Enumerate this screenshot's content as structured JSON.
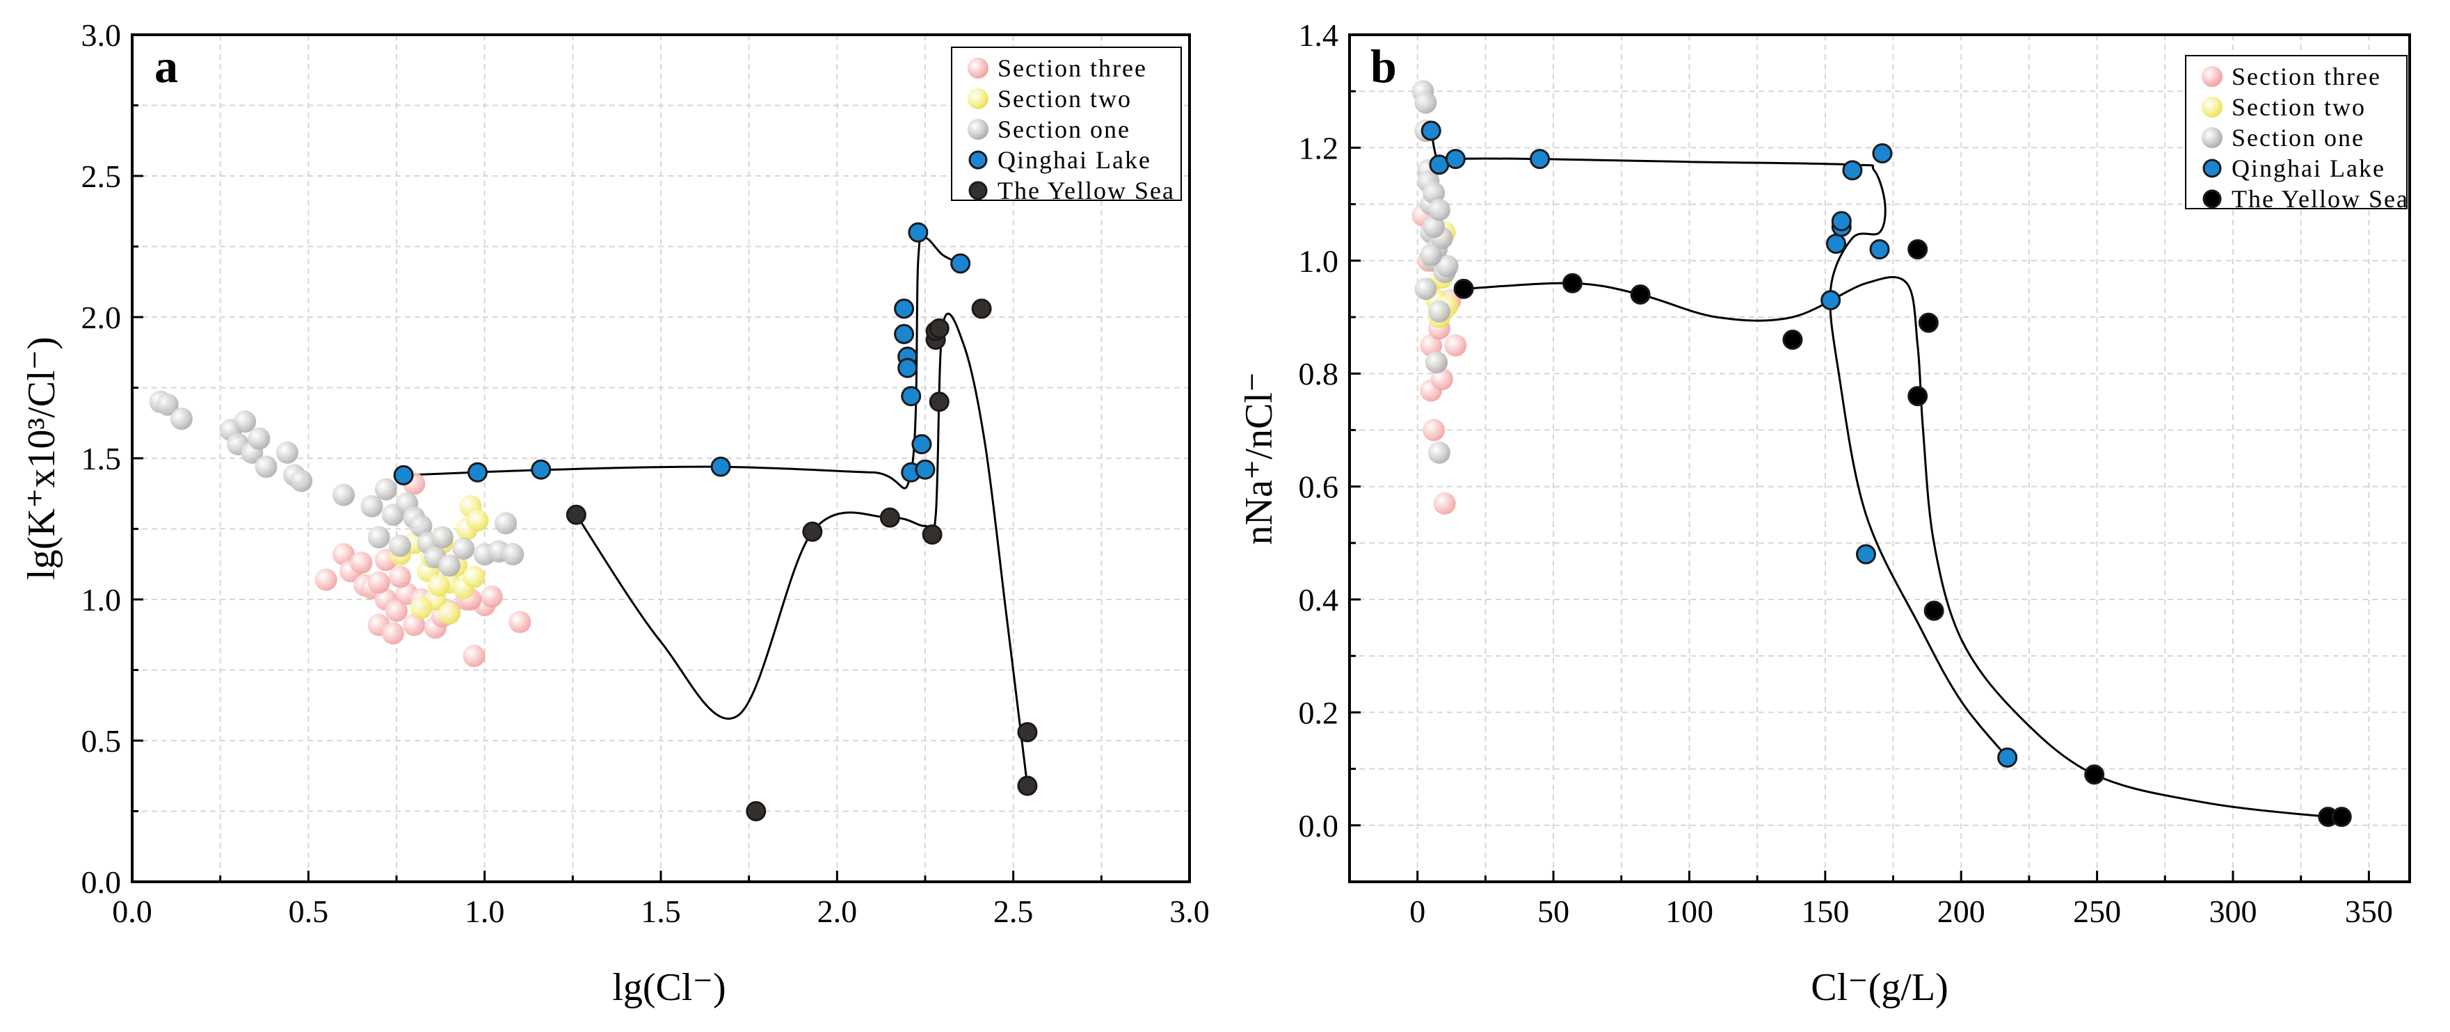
{
  "chart_data": [
    {
      "panel": "a",
      "type": "scatter",
      "xlabel": "lg(Cl⁻)",
      "ylabel": "lg(K⁺x10³/Cl⁻)",
      "xlim": [
        0,
        3
      ],
      "ylim": [
        0,
        3
      ],
      "xticks": [
        "0.0",
        "0.5",
        "1.0",
        "1.5",
        "2.0",
        "2.5",
        "3.0"
      ],
      "yticks": [
        "0.0",
        "0.5",
        "1.0",
        "1.5",
        "2.0",
        "2.5",
        "3.0"
      ],
      "grid": true,
      "legend_position": "top-right",
      "series": [
        {
          "name": "Section three",
          "color": "#f7b8b8",
          "marker": "faded-sphere",
          "x": [
            0.55,
            0.6,
            0.62,
            0.65,
            0.66,
            0.68,
            0.7,
            0.72,
            0.74,
            0.75,
            0.78,
            0.8,
            0.72,
            0.76,
            0.82,
            0.86,
            0.9,
            0.95,
            0.97,
            1.0,
            1.02,
            1.1,
            0.96,
            0.88,
            0.7,
            0.8
          ],
          "y": [
            1.07,
            1.16,
            1.1,
            1.13,
            1.05,
            1.04,
            0.91,
            1.0,
            0.88,
            0.96,
            1.02,
            0.91,
            1.14,
            1.08,
            1.0,
            0.9,
            0.96,
            1.0,
            0.8,
            0.98,
            1.01,
            0.92,
            1.0,
            0.94,
            1.06,
            1.41
          ]
        },
        {
          "name": "Section two",
          "color": "#f5ef8a",
          "marker": "faded-sphere",
          "x": [
            0.76,
            0.8,
            0.84,
            0.86,
            0.88,
            0.9,
            0.92,
            0.94,
            0.95,
            0.96,
            0.98,
            0.82,
            0.85,
            0.9,
            0.97,
            0.87
          ],
          "y": [
            1.16,
            1.2,
            1.1,
            1.0,
            1.2,
            1.06,
            1.12,
            1.04,
            1.25,
            1.33,
            1.28,
            0.97,
            1.15,
            0.95,
            1.08,
            1.05
          ]
        },
        {
          "name": "Section one",
          "color": "#c8c8c8",
          "marker": "faded-sphere",
          "x": [
            0.08,
            0.1,
            0.14,
            0.28,
            0.3,
            0.32,
            0.34,
            0.36,
            0.38,
            0.44,
            0.46,
            0.48,
            0.6,
            0.68,
            0.7,
            0.72,
            0.74,
            0.76,
            0.78,
            0.8,
            0.82,
            0.84,
            0.86,
            0.88,
            0.9,
            0.94,
            1.0,
            1.04,
            1.06,
            1.08
          ],
          "y": [
            1.7,
            1.69,
            1.64,
            1.6,
            1.55,
            1.63,
            1.52,
            1.57,
            1.47,
            1.52,
            1.44,
            1.42,
            1.37,
            1.33,
            1.22,
            1.39,
            1.3,
            1.19,
            1.34,
            1.29,
            1.26,
            1.2,
            1.15,
            1.22,
            1.12,
            1.18,
            1.16,
            1.17,
            1.27,
            1.16
          ]
        },
        {
          "name": "Qinghai Lake",
          "color": "#1a86d2",
          "marker": "circle",
          "x": [
            0.77,
            0.98,
            1.16,
            1.67,
            2.19,
            2.19,
            2.2,
            2.2,
            2.21,
            2.21,
            2.23,
            2.24,
            2.25,
            2.35
          ],
          "y": [
            1.44,
            1.45,
            1.46,
            1.47,
            2.03,
            1.94,
            1.86,
            1.82,
            1.72,
            1.45,
            2.3,
            1.55,
            1.46,
            2.19
          ]
        },
        {
          "name": "The Yellow Sea",
          "color": "#35302d",
          "marker": "circle",
          "x": [
            1.26,
            1.77,
            1.93,
            2.15,
            2.27,
            2.28,
            2.28,
            2.29,
            2.29,
            2.41,
            2.54,
            2.54
          ],
          "y": [
            1.3,
            0.25,
            1.24,
            1.29,
            1.23,
            1.92,
            1.95,
            1.7,
            1.96,
            2.03,
            0.53,
            0.34
          ]
        }
      ],
      "curves": [
        {
          "name": "Qinghai Lake trend",
          "x": [
            0.77,
            1.2,
            1.67,
            2.1,
            2.21,
            2.23,
            2.25,
            2.3,
            2.35
          ],
          "y": [
            1.44,
            1.46,
            1.47,
            1.45,
            1.45,
            2.2,
            2.28,
            2.22,
            2.19
          ]
        },
        {
          "name": "The Yellow Sea trend",
          "x": [
            1.26,
            1.5,
            1.72,
            1.93,
            2.15,
            2.25,
            2.28,
            2.3,
            2.36,
            2.42,
            2.48,
            2.54
          ],
          "y": [
            1.3,
            0.85,
            0.59,
            1.24,
            1.29,
            1.26,
            1.3,
            1.97,
            1.9,
            1.55,
            0.95,
            0.34
          ]
        }
      ]
    },
    {
      "panel": "b",
      "type": "scatter",
      "xlabel": "Cl⁻(g/L)",
      "ylabel": "nNa⁺/nCl⁻",
      "xlim": [
        -25,
        365
      ],
      "ylim": [
        -0.1,
        1.4
      ],
      "xticks": [
        "0",
        "50",
        "100",
        "150",
        "200",
        "250",
        "300",
        "350"
      ],
      "yticks": [
        "0.0",
        "0.2",
        "0.4",
        "0.6",
        "0.8",
        "1.0",
        "1.2",
        "1.4"
      ],
      "grid": true,
      "legend_position": "top-right",
      "series": [
        {
          "name": "Section three",
          "color": "#f7b8b8",
          "marker": "faded-sphere",
          "x": [
            2,
            4,
            5,
            5,
            6,
            7,
            8,
            9,
            10,
            14,
            12,
            4
          ],
          "y": [
            1.08,
            1.0,
            0.85,
            0.77,
            0.7,
            0.82,
            0.88,
            0.79,
            0.57,
            0.85,
            0.93,
            0.95
          ]
        },
        {
          "name": "Section two",
          "color": "#f5ef8a",
          "marker": "faded-sphere",
          "x": [
            4,
            6,
            7,
            8,
            9,
            10,
            11
          ],
          "y": [
            0.95,
            1.0,
            0.93,
            0.9,
            0.97,
            1.05,
            0.92
          ]
        },
        {
          "name": "Section one",
          "color": "#c8c8c8",
          "marker": "faded-sphere",
          "x": [
            2,
            3,
            3,
            4,
            4,
            5,
            5,
            6,
            6,
            7,
            7,
            8,
            8,
            9,
            10,
            11,
            3,
            6,
            8,
            5
          ],
          "y": [
            1.3,
            1.28,
            1.23,
            1.16,
            1.14,
            1.1,
            1.05,
            1.0,
            1.12,
            1.02,
            0.82,
            0.66,
            0.91,
            1.04,
            0.98,
            0.99,
            0.95,
            1.06,
            1.09,
            1.01
          ]
        },
        {
          "name": "Qinghai Lake",
          "color": "#1a86d2",
          "marker": "circle",
          "x": [
            5,
            8,
            14,
            45,
            152,
            154,
            156,
            156,
            160,
            165,
            170,
            171,
            217
          ],
          "y": [
            1.23,
            1.17,
            1.18,
            1.18,
            0.93,
            1.03,
            1.06,
            1.07,
            1.16,
            0.48,
            1.02,
            1.19,
            0.12
          ]
        },
        {
          "name": "The Yellow Sea",
          "color": "#000000",
          "marker": "circle",
          "x": [
            17,
            57,
            82,
            138,
            184,
            184,
            188,
            190,
            249,
            335,
            340
          ],
          "y": [
            0.95,
            0.96,
            0.94,
            0.86,
            1.02,
            0.76,
            0.89,
            0.38,
            0.09,
            0.015,
            0.015
          ]
        }
      ],
      "curves": [
        {
          "name": "Qinghai Lake trend",
          "x": [
            5,
            8,
            14,
            45,
            100,
            160,
            168,
            172,
            170,
            160,
            152,
            155,
            165,
            185,
            200,
            217
          ],
          "y": [
            1.23,
            1.17,
            1.18,
            1.18,
            1.175,
            1.17,
            1.16,
            1.1,
            1.05,
            1.04,
            0.95,
            0.8,
            0.55,
            0.35,
            0.22,
            0.12
          ]
        },
        {
          "name": "The Yellow Sea trend",
          "x": [
            17,
            57,
            82,
            110,
            138,
            165,
            180,
            184,
            186,
            190,
            200,
            220,
            249,
            290,
            335,
            340
          ],
          "y": [
            0.95,
            0.96,
            0.94,
            0.9,
            0.9,
            0.96,
            0.96,
            0.85,
            0.7,
            0.5,
            0.33,
            0.2,
            0.09,
            0.04,
            0.015,
            0.015
          ]
        }
      ]
    }
  ]
}
